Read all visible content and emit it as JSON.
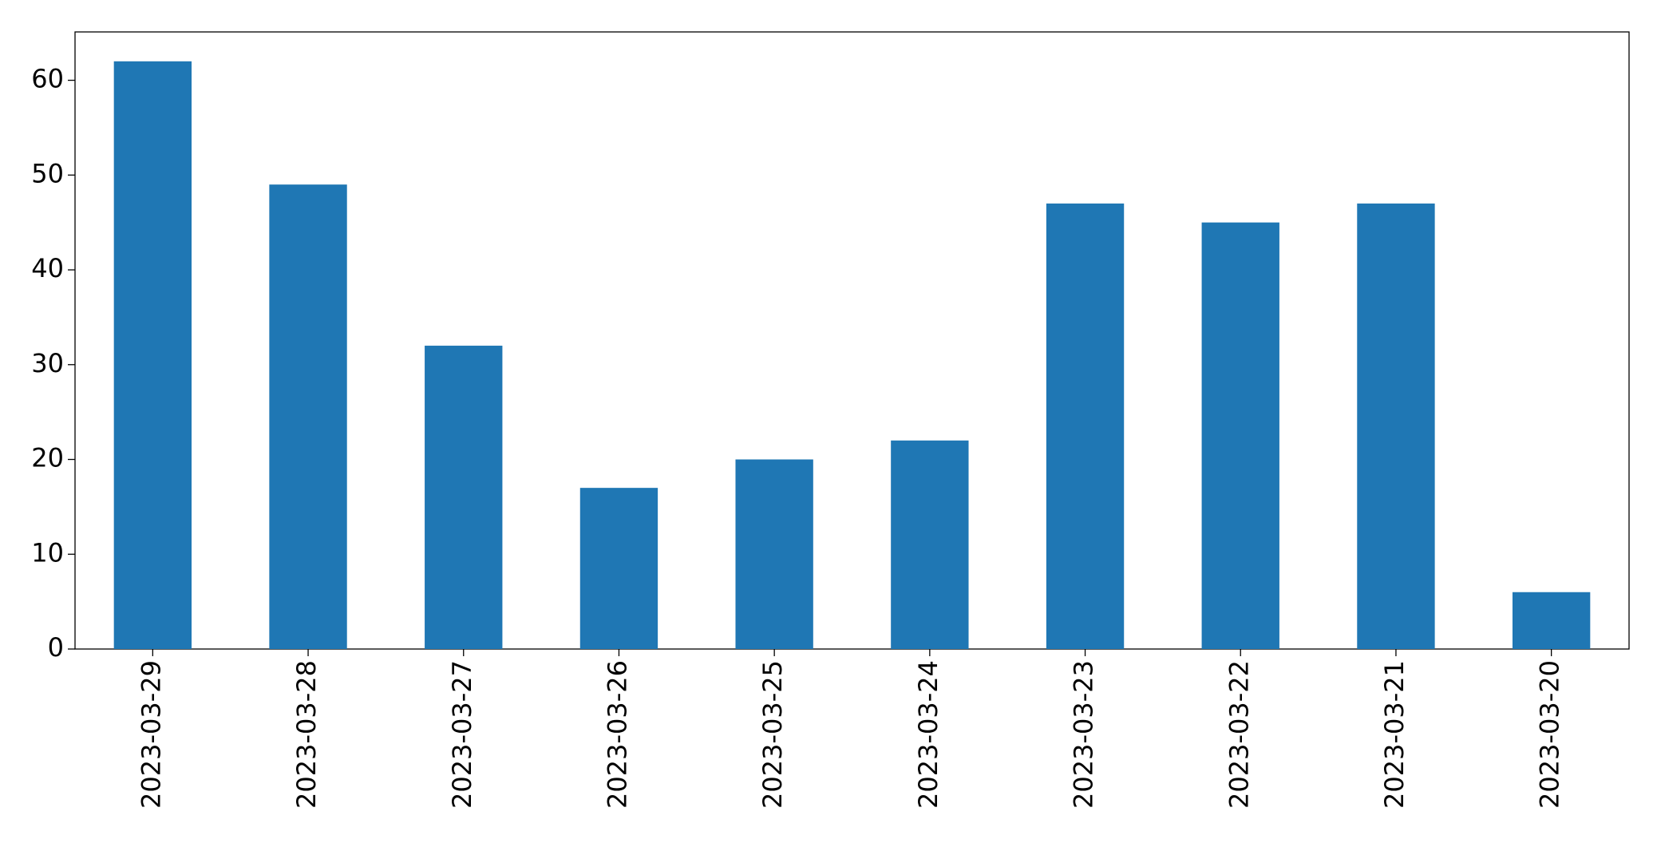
{
  "chart_data": {
    "type": "bar",
    "categories": [
      "2023-03-29",
      "2023-03-28",
      "2023-03-27",
      "2023-03-26",
      "2023-03-25",
      "2023-03-24",
      "2023-03-23",
      "2023-03-22",
      "2023-03-21",
      "2023-03-20"
    ],
    "values": [
      62,
      49,
      32,
      17,
      20,
      22,
      47,
      45,
      47,
      6
    ],
    "color": "#1f77b4",
    "ylim": [
      0,
      65.1
    ],
    "yticks": [
      0,
      10,
      20,
      30,
      40,
      50,
      60
    ],
    "grid": false
  }
}
